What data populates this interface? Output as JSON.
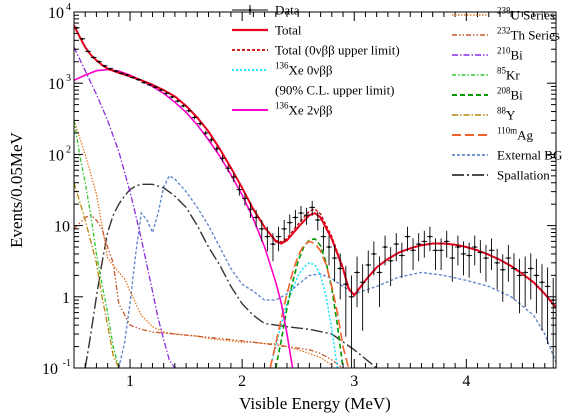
{
  "chart_data": {
    "type": "line",
    "title": "",
    "xlabel": "Visible Energy (MeV)",
    "ylabel": "Events/0.05MeV",
    "xlim": [
      0.5,
      4.8
    ],
    "ylim": [
      0.1,
      10000
    ],
    "yscale": "log",
    "grid": false,
    "legend_position": "top-right",
    "x_ticks": [
      "1",
      "2",
      "3",
      "4"
    ],
    "y_ticks": [
      {
        "base": "10",
        "exp": "-1"
      },
      {
        "base": "1",
        "exp": ""
      },
      {
        "base": "10",
        "exp": ""
      },
      {
        "base": "10",
        "exp": "2"
      },
      {
        "base": "10",
        "exp": "3"
      },
      {
        "base": "10",
        "exp": "4"
      }
    ],
    "legend": {
      "col1": [
        {
          "sup": "",
          "text": "Data"
        },
        {
          "sup": "",
          "text": "Total"
        },
        {
          "sup": "",
          "text": "Total (0νββ upper limit)"
        },
        {
          "sup": "136",
          "text": "Xe 0νββ"
        },
        {
          "sup": "",
          "text": "(90% C.L. upper limit)"
        },
        {
          "sup": "136",
          "text": "Xe 2νββ"
        }
      ],
      "col2": [
        {
          "sup": "238",
          "text": "U Series"
        },
        {
          "sup": "232",
          "text": "Th Series"
        },
        {
          "sup": "210",
          "text": "Bi"
        },
        {
          "sup": "85",
          "text": "Kr"
        },
        {
          "sup": "208",
          "text": "Bi"
        },
        {
          "sup": "88",
          "text": "Y"
        },
        {
          "sup": "110m",
          "text": "Ag"
        },
        {
          "sup": "",
          "text": "External BG"
        },
        {
          "sup": "",
          "text": "Spallation"
        }
      ]
    },
    "colors": {
      "data": "#000000",
      "total": "#e8001c",
      "total_ul": "#cc0000",
      "xe0v": "#00e5ff",
      "xe2v": "#ff00cc",
      "u238": "#e87722",
      "th232": "#c8582e",
      "bi210": "#8a2be2",
      "kr85": "#2ec72e",
      "bi208": "#009900",
      "y88": "#b8860b",
      "ag110m": "#f4622b",
      "ext": "#6688cc",
      "spall": "#333333"
    },
    "data": {
      "x": [
        0.525,
        0.575,
        0.625,
        0.675,
        0.725,
        0.775,
        0.825,
        0.875,
        0.925,
        0.975,
        1.025,
        1.075,
        1.125,
        1.175,
        1.225,
        1.275,
        1.325,
        1.375,
        1.425,
        1.475,
        1.525,
        1.575,
        1.625,
        1.675,
        1.725,
        1.775,
        1.825,
        1.875,
        1.925,
        1.975,
        2.025,
        2.075,
        2.125,
        2.175,
        2.225,
        2.275,
        2.325,
        2.375,
        2.425,
        2.475,
        2.525,
        2.575,
        2.625,
        2.675,
        2.725,
        2.775,
        2.825,
        2.875,
        2.925,
        2.975,
        3.025,
        3.075,
        3.125,
        3.175,
        3.225,
        3.275,
        3.325,
        3.375,
        3.425,
        3.475,
        3.525,
        3.575,
        3.625,
        3.675,
        3.725,
        3.775,
        3.825,
        3.875,
        3.925,
        3.975,
        4.025,
        4.075,
        4.125,
        4.175,
        4.225,
        4.275,
        4.325,
        4.375,
        4.425,
        4.475,
        4.525,
        4.575,
        4.625,
        4.675,
        4.725,
        4.775
      ],
      "y": [
        6000,
        4200,
        2800,
        2300,
        2000,
        1750,
        1600,
        1480,
        1380,
        1300,
        1200,
        1120,
        1020,
        950,
        880,
        800,
        720,
        640,
        560,
        480,
        410,
        330,
        270,
        200,
        160,
        120,
        88,
        64,
        48,
        32,
        24,
        17,
        13,
        9,
        7,
        5.5,
        7,
        9,
        11,
        13,
        15,
        14,
        18,
        12,
        7,
        5,
        3.5,
        2.5,
        1.5,
        1.0,
        2.2,
        1.6,
        2.8,
        4,
        2.2,
        5,
        3.2,
        5.5,
        3.8,
        7,
        4.5,
        5.5,
        6,
        7,
        4.5,
        4.5,
        6,
        3.5,
        5,
        4,
        3.8,
        5,
        4.2,
        3.5,
        4.5,
        3,
        2.4,
        3.5,
        2.5,
        2,
        2.2,
        2.5,
        2,
        1.6,
        1.4,
        0.9
      ]
    },
    "series": [
      {
        "key": "total",
        "x": [
          0.5,
          0.55,
          0.6,
          0.65,
          0.7,
          0.75,
          0.8,
          0.9,
          1.0,
          1.1,
          1.2,
          1.3,
          1.4,
          1.5,
          1.6,
          1.7,
          1.8,
          1.9,
          2.0,
          2.1,
          2.2,
          2.3,
          2.35,
          2.4,
          2.5,
          2.6,
          2.65,
          2.7,
          2.8,
          2.9,
          2.95,
          3.0,
          3.1,
          3.2,
          3.3,
          3.4,
          3.5,
          3.6,
          3.7,
          3.8,
          3.9,
          4.0,
          4.1,
          4.2,
          4.3,
          4.4,
          4.5,
          4.6,
          4.7,
          4.8
        ],
        "y": [
          6500,
          4500,
          3200,
          2500,
          2100,
          1800,
          1600,
          1400,
          1250,
          1100,
          950,
          800,
          650,
          480,
          330,
          210,
          120,
          65,
          34,
          17,
          9.5,
          6.0,
          5.6,
          6.2,
          9.5,
          14,
          15,
          13,
          6.5,
          2.5,
          1.3,
          1.05,
          1.7,
          2.6,
          3.4,
          4.2,
          4.8,
          5.3,
          5.6,
          5.6,
          5.4,
          5.0,
          4.5,
          3.9,
          3.3,
          2.7,
          2.1,
          1.6,
          1.1,
          0.7
        ]
      },
      {
        "key": "total_ul",
        "x": [
          0.5,
          0.55,
          0.6,
          0.65,
          0.7,
          0.75,
          0.8,
          0.9,
          1.0,
          1.1,
          1.2,
          1.3,
          1.4,
          1.5,
          1.6,
          1.7,
          1.8,
          1.9,
          2.0,
          2.1,
          2.2,
          2.3,
          2.35,
          2.4,
          2.5,
          2.6,
          2.65,
          2.7,
          2.8,
          2.9,
          2.95,
          3.0,
          3.1,
          3.2,
          3.3,
          3.4,
          3.5,
          3.6,
          3.7,
          3.8,
          3.9,
          4.0,
          4.1,
          4.2,
          4.3,
          4.4,
          4.5,
          4.6,
          4.7,
          4.8
        ],
        "y": [
          6500,
          4500,
          3200,
          2500,
          2100,
          1800,
          1600,
          1400,
          1250,
          1100,
          950,
          800,
          650,
          480,
          330,
          210,
          120,
          65,
          34,
          17,
          9.6,
          6.2,
          5.9,
          6.6,
          10.5,
          16,
          17,
          14.5,
          7,
          2.6,
          1.35,
          1.05,
          1.7,
          2.6,
          3.4,
          4.2,
          4.8,
          5.3,
          5.6,
          5.6,
          5.4,
          5.0,
          4.5,
          3.9,
          3.3,
          2.7,
          2.1,
          1.6,
          1.1,
          0.7
        ]
      },
      {
        "key": "xe2v",
        "x": [
          0.5,
          0.6,
          0.7,
          0.8,
          0.9,
          1.0,
          1.1,
          1.2,
          1.3,
          1.4,
          1.5,
          1.6,
          1.7,
          1.8,
          1.9,
          2.0,
          2.1,
          2.2,
          2.3,
          2.35,
          2.4,
          2.45
        ],
        "y": [
          1100,
          1300,
          1500,
          1550,
          1480,
          1300,
          1100,
          900,
          720,
          540,
          390,
          260,
          160,
          95,
          52,
          27,
          12.5,
          5.0,
          1.6,
          0.8,
          0.3,
          0.1
        ]
      },
      {
        "key": "xe0v",
        "x": [
          2.25,
          2.3,
          2.35,
          2.4,
          2.45,
          2.5,
          2.55,
          2.6,
          2.65,
          2.7,
          2.75,
          2.8,
          2.85
        ],
        "y": [
          0.1,
          0.2,
          0.42,
          0.8,
          1.3,
          2.0,
          2.6,
          3.0,
          2.8,
          2.0,
          1.0,
          0.35,
          0.1
        ]
      },
      {
        "key": "bi210",
        "x": [
          0.5,
          0.6,
          0.7,
          0.8,
          0.9,
          1.0,
          1.05,
          1.1,
          1.15,
          1.2,
          1.25,
          1.3,
          1.35,
          1.4
        ],
        "y": [
          3200,
          1500,
          700,
          300,
          110,
          30,
          14,
          6.5,
          2.8,
          1.2,
          0.5,
          0.25,
          0.13,
          0.1
        ]
      },
      {
        "key": "u238",
        "x": [
          0.5,
          0.6,
          0.7,
          0.8,
          0.9,
          0.95,
          1.0,
          1.1,
          1.2,
          1.3,
          1.4,
          1.5,
          1.6,
          1.7,
          1.8,
          1.9,
          2.0,
          2.1,
          2.2,
          2.3,
          2.4,
          2.5,
          2.6,
          2.7,
          2.8
        ],
        "y": [
          300,
          100,
          28,
          3.5,
          2.2,
          1.8,
          1.2,
          0.55,
          0.38,
          0.32,
          0.3,
          0.29,
          0.28,
          0.26,
          0.25,
          0.24,
          0.23,
          0.23,
          0.22,
          0.22,
          0.2,
          0.18,
          0.16,
          0.14,
          0.11
        ]
      },
      {
        "key": "th232",
        "x": [
          0.5,
          0.6,
          0.65,
          0.7,
          0.75,
          0.8,
          0.85,
          0.9,
          1.0,
          1.1,
          1.2,
          1.4,
          1.6,
          1.8,
          2.0,
          2.2,
          2.4,
          2.5,
          2.6,
          2.7,
          2.8,
          2.9
        ],
        "y": [
          9,
          13,
          14,
          12,
          9,
          5,
          3,
          0.8,
          0.4,
          0.35,
          0.32,
          0.3,
          0.28,
          0.26,
          0.24,
          0.22,
          0.2,
          0.19,
          0.18,
          0.16,
          0.13,
          0.1
        ]
      },
      {
        "key": "kr85",
        "x": [
          0.5,
          0.55,
          0.6,
          0.65,
          0.7,
          0.75,
          0.8,
          0.85,
          0.9
        ],
        "y": [
          300,
          100,
          40,
          14,
          4,
          1.5,
          0.6,
          0.2,
          0.1
        ]
      },
      {
        "key": "bi208",
        "x": [
          2.3,
          2.35,
          2.4,
          2.45,
          2.5,
          2.55,
          2.6,
          2.65,
          2.7,
          2.75,
          2.8,
          2.85,
          2.9
        ],
        "y": [
          0.1,
          0.25,
          0.7,
          1.6,
          3.2,
          5.0,
          6.3,
          6.5,
          5.2,
          3.0,
          1.3,
          0.4,
          0.1
        ]
      },
      {
        "key": "y88",
        "x": [
          0.5,
          0.6,
          0.7,
          0.75,
          0.8,
          0.85,
          0.9
        ],
        "y": [
          40,
          12,
          3.0,
          1.0,
          0.4,
          0.15,
          0.1
        ]
      },
      {
        "key": "ag110m",
        "x": [
          2.25,
          2.3,
          2.35,
          2.4,
          2.45,
          2.5,
          2.55,
          2.6,
          2.65,
          2.7,
          2.75,
          2.8,
          2.85,
          2.9,
          2.95
        ],
        "y": [
          0.1,
          0.22,
          0.5,
          1.1,
          2.2,
          3.8,
          5.3,
          6.0,
          5.6,
          4.4,
          2.8,
          1.4,
          0.6,
          0.2,
          0.1
        ]
      },
      {
        "key": "ext",
        "x": [
          0.9,
          0.95,
          1.0,
          1.05,
          1.1,
          1.15,
          1.2,
          1.25,
          1.3,
          1.35,
          1.4,
          1.5,
          1.6,
          1.7,
          1.8,
          1.9,
          2.0,
          2.1,
          2.2,
          2.3,
          2.4,
          2.5,
          2.6,
          2.7,
          2.8,
          2.9,
          3.0,
          3.2,
          3.4,
          3.6,
          3.8,
          4.0,
          4.2,
          4.4,
          4.6,
          4.7,
          4.8
        ],
        "y": [
          0.1,
          0.22,
          0.8,
          4,
          15,
          12,
          8,
          15,
          35,
          50,
          45,
          30,
          18,
          10,
          5,
          2.5,
          1.5,
          1.2,
          0.9,
          0.9,
          1.1,
          1.5,
          2.0,
          2.1,
          1.8,
          1.4,
          1.1,
          1.4,
          1.9,
          2.2,
          2.0,
          1.7,
          1.4,
          1.0,
          0.55,
          0.3,
          0.12
        ]
      },
      {
        "key": "spall",
        "x": [
          0.6,
          0.65,
          0.7,
          0.75,
          0.8,
          0.85,
          0.9,
          0.95,
          1.0,
          1.05,
          1.1,
          1.2,
          1.3,
          1.4,
          1.5,
          1.6,
          1.7,
          1.8,
          1.9,
          2.0,
          2.1,
          2.2,
          2.3,
          2.4,
          2.6,
          2.8,
          3.0,
          3.2
        ],
        "y": [
          0.1,
          0.3,
          1.0,
          3,
          8,
          14,
          20,
          26,
          32,
          36,
          38,
          38,
          34,
          26,
          18,
          10,
          5,
          2.8,
          1.4,
          0.8,
          0.55,
          0.42,
          0.4,
          0.38,
          0.35,
          0.3,
          0.18,
          0.1
        ]
      }
    ]
  }
}
